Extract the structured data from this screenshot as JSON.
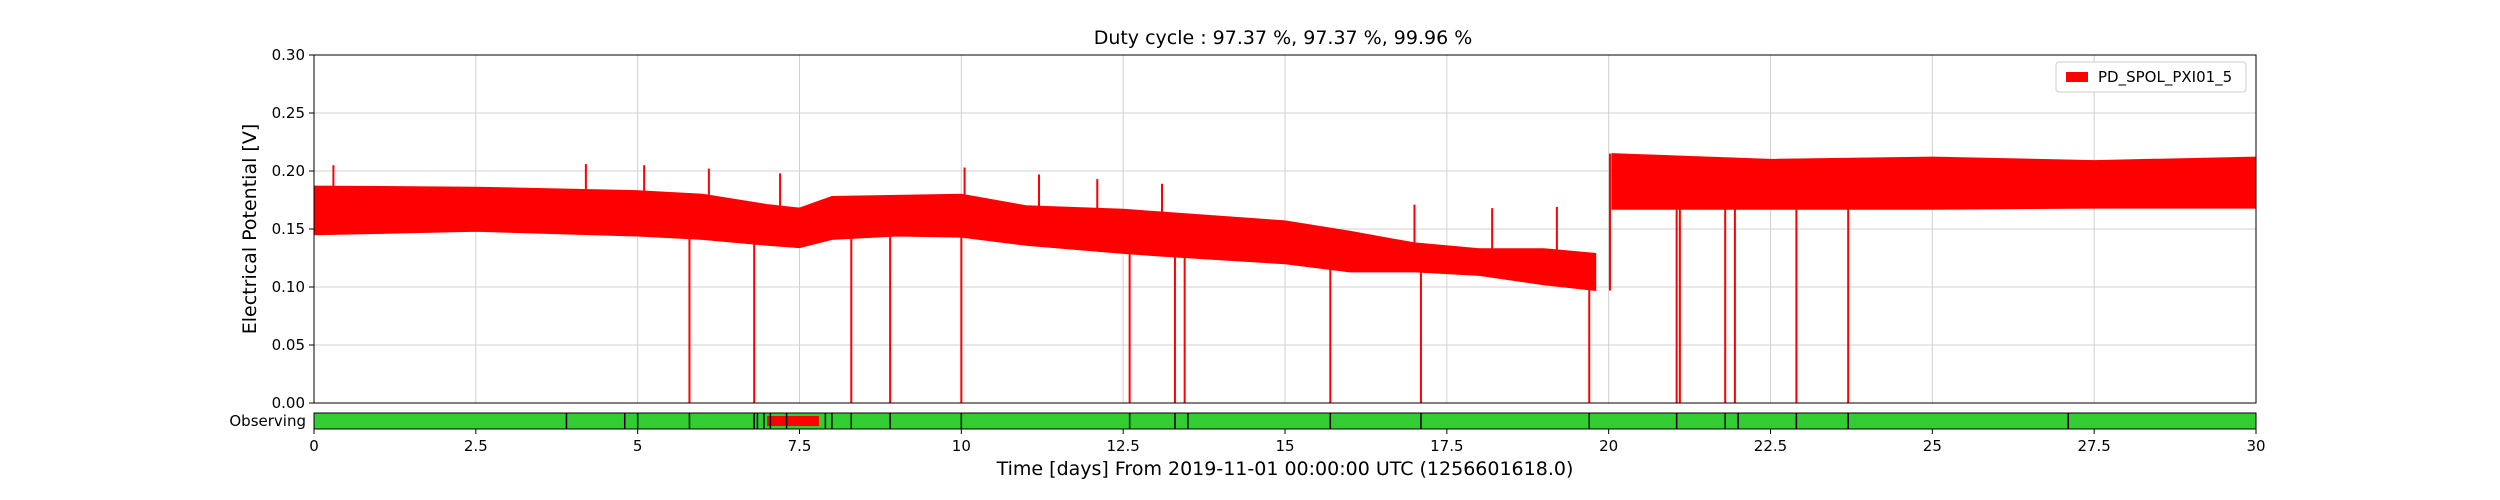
{
  "chart_data": {
    "type": "line",
    "title": "Duty cycle : 97.37 %, 97.37 %, 99.96 %",
    "xlabel": "Time [days] From 2019-11-01 00:00:00 UTC (1256601618.0)",
    "ylabel": "Electrical Potential [V]",
    "xlim": [
      0,
      30
    ],
    "ylim": [
      0,
      0.3
    ],
    "grid": true,
    "legend_placement": "top-right",
    "x_ticks": [
      "0",
      "2.5",
      "5",
      "7.5",
      "10",
      "12.5",
      "15",
      "17.5",
      "20",
      "22.5",
      "25",
      "27.5",
      "30"
    ],
    "y_ticks": [
      "0.00",
      "0.05",
      "0.10",
      "0.15",
      "0.20",
      "0.25",
      "0.30"
    ],
    "series": [
      {
        "name": "PD_SPOL_PXI01_5",
        "color": "#ff0000",
        "x": [
          0,
          2.5,
          5,
          6,
          7,
          7.5,
          8,
          9,
          10,
          11,
          12.5,
          13,
          15,
          16,
          17,
          18,
          19,
          19.8,
          20.05,
          21,
          22.5,
          25,
          27.5,
          30
        ],
        "y_min": [
          0.145,
          0.148,
          0.144,
          0.141,
          0.136,
          0.134,
          0.141,
          0.144,
          0.143,
          0.136,
          0.129,
          0.127,
          0.12,
          0.113,
          0.113,
          0.11,
          0.102,
          0.097,
          0.167,
          0.167,
          0.167,
          0.167,
          0.168,
          0.168
        ],
        "y_max": [
          0.187,
          0.186,
          0.183,
          0.18,
          0.171,
          0.168,
          0.178,
          0.179,
          0.18,
          0.17,
          0.167,
          0.165,
          0.157,
          0.148,
          0.138,
          0.133,
          0.133,
          0.129,
          0.215,
          0.213,
          0.21,
          0.212,
          0.209,
          0.212
        ],
        "dips": [
          {
            "x": 5.8,
            "y": 0.0
          },
          {
            "x": 6.8,
            "y": 0.0
          },
          {
            "x": 8.3,
            "y": 0.0
          },
          {
            "x": 8.9,
            "y": 0.0
          },
          {
            "x": 10.0,
            "y": 0.0
          },
          {
            "x": 12.6,
            "y": 0.0
          },
          {
            "x": 13.3,
            "y": 0.0
          },
          {
            "x": 13.45,
            "y": 0.0
          },
          {
            "x": 15.7,
            "y": 0.0
          },
          {
            "x": 17.1,
            "y": 0.0
          },
          {
            "x": 19.7,
            "y": 0.0
          },
          {
            "x": 21.05,
            "y": 0.0
          },
          {
            "x": 21.1,
            "y": 0.0
          },
          {
            "x": 21.8,
            "y": 0.0
          },
          {
            "x": 21.95,
            "y": 0.0
          },
          {
            "x": 22.9,
            "y": 0.0
          },
          {
            "x": 23.7,
            "y": 0.0
          }
        ],
        "spikes": [
          {
            "x": 0.3,
            "y": 0.205
          },
          {
            "x": 4.2,
            "y": 0.206
          },
          {
            "x": 5.1,
            "y": 0.205
          },
          {
            "x": 6.1,
            "y": 0.202
          },
          {
            "x": 7.2,
            "y": 0.198
          },
          {
            "x": 10.05,
            "y": 0.203
          },
          {
            "x": 11.2,
            "y": 0.197
          },
          {
            "x": 12.1,
            "y": 0.193
          },
          {
            "x": 13.1,
            "y": 0.189
          },
          {
            "x": 17.0,
            "y": 0.171
          },
          {
            "x": 18.2,
            "y": 0.168
          },
          {
            "x": 19.2,
            "y": 0.169
          }
        ]
      }
    ],
    "state_bar": {
      "label": "Observing",
      "on_color": "#33cc33",
      "off_color": "#ff0000",
      "segment_color": "#000000",
      "off_intervals": [
        [
          7.0,
          7.8
        ]
      ],
      "segment_marks": [
        3.9,
        4.8,
        5.0,
        5.8,
        6.8,
        6.85,
        6.95,
        7.05,
        7.3,
        7.9,
        8.0,
        8.3,
        8.9,
        10.0,
        12.6,
        13.3,
        13.5,
        15.7,
        17.1,
        19.7,
        21.05,
        21.8,
        22.0,
        22.9,
        23.7,
        27.1
      ]
    }
  }
}
